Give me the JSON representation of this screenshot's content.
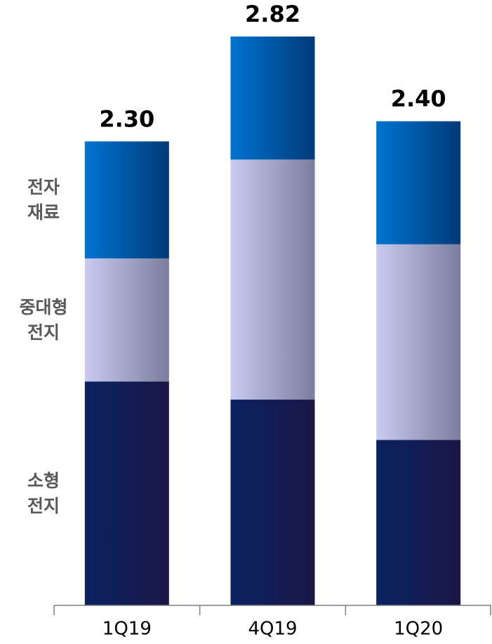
{
  "chart_data": {
    "type": "stacked_bar",
    "categories": [
      "1Q19",
      "4Q19",
      "1Q20"
    ],
    "series": [
      {
        "name": "소형\n전지",
        "color": [
          "#0b2262",
          "#1a1646"
        ],
        "values": [
          1.11,
          1.02,
          0.82
        ]
      },
      {
        "name": "중대형\n전지",
        "color": [
          "#c8cbf0",
          "#7a7d9c"
        ],
        "values": [
          0.61,
          1.19,
          0.97
        ]
      },
      {
        "name": "전자\n재료",
        "color": [
          "#0074d0",
          "#003a78"
        ],
        "values": [
          0.58,
          0.61,
          0.61
        ]
      }
    ],
    "totals": [
      2.3,
      2.82,
      2.4
    ],
    "total_labels": [
      "2.30",
      "2.82",
      "2.40"
    ]
  }
}
